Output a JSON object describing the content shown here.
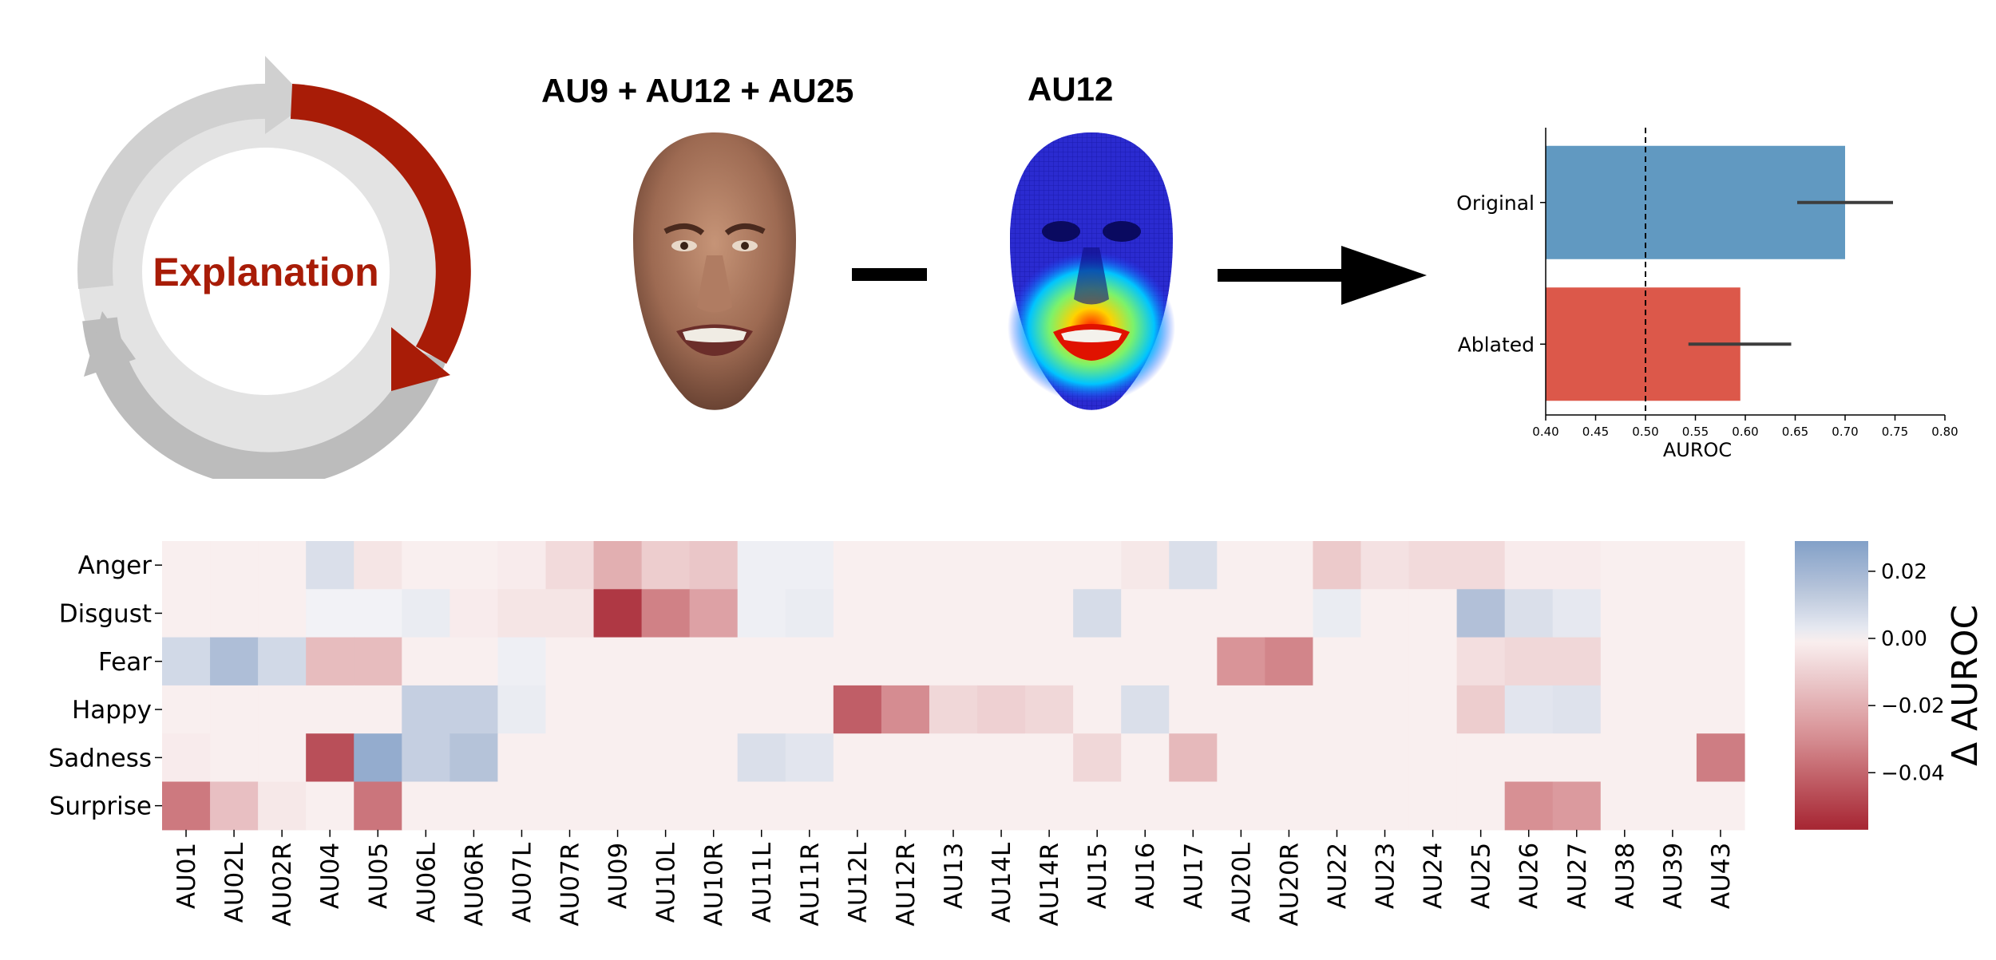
{
  "cycle": {
    "label": "Explanation",
    "accent": "#a81c07"
  },
  "faces": {
    "combined_label": "AU9 + AU12 + AU25",
    "single_label": "AU12",
    "operator": "minus"
  },
  "bar_chart": {
    "type": "bar",
    "orientation": "horizontal",
    "categories": [
      "Original",
      "Ablated"
    ],
    "values": [
      0.7,
      0.595
    ],
    "errors": [
      [
        0.652,
        0.748
      ],
      [
        0.543,
        0.646
      ]
    ],
    "colors": [
      "#6199c1",
      "#dc584a"
    ],
    "xlabel": "AUROC",
    "xlim": [
      0.4,
      0.8
    ],
    "xticks": [
      "0.40",
      "0.45",
      "0.50",
      "0.55",
      "0.60",
      "0.65",
      "0.70",
      "0.75",
      "0.80"
    ],
    "reference_line": 0.5
  },
  "chart_data": {
    "type": "heatmap",
    "rows": [
      "Anger",
      "Disgust",
      "Fear",
      "Happy",
      "Sadness",
      "Surprise"
    ],
    "columns": [
      "AU01",
      "AU02L",
      "AU02R",
      "AU04",
      "AU05",
      "AU06L",
      "AU06R",
      "AU07L",
      "AU07R",
      "AU09",
      "AU10L",
      "AU10R",
      "AU11L",
      "AU11R",
      "AU12L",
      "AU12R",
      "AU13",
      "AU14L",
      "AU14R",
      "AU15",
      "AU16",
      "AU17",
      "AU20L",
      "AU20R",
      "AU22",
      "AU23",
      "AU24",
      "AU25",
      "AU26",
      "AU27",
      "AU38",
      "AU39",
      "AU43"
    ],
    "values": [
      [
        -0.001,
        -0.001,
        -0.001,
        0.006,
        -0.004,
        -0.001,
        -0.001,
        -0.002,
        -0.007,
        -0.02,
        -0.011,
        -0.013,
        0.001,
        0.001,
        -0.001,
        -0.001,
        -0.001,
        -0.001,
        -0.001,
        -0.001,
        -0.003,
        0.006,
        -0.001,
        -0.001,
        -0.012,
        -0.005,
        -0.007,
        -0.007,
        -0.002,
        -0.002,
        -0.001,
        -0.001,
        -0.001
      ],
      [
        -0.001,
        -0.001,
        -0.001,
        0.0,
        0.0,
        0.002,
        -0.002,
        -0.004,
        -0.004,
        -0.052,
        -0.033,
        -0.024,
        0.001,
        0.002,
        -0.001,
        -0.001,
        -0.001,
        -0.001,
        -0.001,
        0.007,
        -0.001,
        -0.001,
        -0.001,
        -0.001,
        0.002,
        -0.001,
        -0.001,
        0.016,
        0.006,
        0.003,
        -0.001,
        -0.001,
        -0.001
      ],
      [
        0.008,
        0.017,
        0.008,
        -0.016,
        -0.016,
        -0.001,
        -0.001,
        0.001,
        -0.001,
        -0.001,
        -0.001,
        -0.001,
        -0.001,
        -0.001,
        -0.001,
        -0.001,
        -0.001,
        -0.001,
        -0.001,
        -0.001,
        -0.001,
        -0.001,
        -0.028,
        -0.032,
        -0.001,
        -0.001,
        -0.001,
        -0.006,
        -0.008,
        -0.008,
        -0.001,
        -0.001,
        -0.001
      ],
      [
        -0.001,
        -0.001,
        -0.001,
        -0.001,
        -0.001,
        0.011,
        0.011,
        0.002,
        -0.001,
        -0.001,
        -0.001,
        -0.001,
        -0.001,
        -0.001,
        -0.042,
        -0.03,
        -0.008,
        -0.01,
        -0.008,
        -0.001,
        0.006,
        -0.001,
        -0.001,
        -0.001,
        -0.001,
        -0.001,
        -0.001,
        -0.011,
        0.004,
        0.005,
        -0.001,
        -0.001,
        -0.001
      ],
      [
        -0.002,
        -0.001,
        -0.001,
        -0.046,
        0.024,
        0.011,
        0.015,
        -0.001,
        -0.001,
        -0.001,
        -0.001,
        -0.001,
        0.006,
        0.004,
        -0.001,
        -0.001,
        -0.001,
        -0.001,
        -0.001,
        -0.008,
        -0.001,
        -0.017,
        -0.001,
        -0.001,
        -0.001,
        -0.001,
        -0.001,
        -0.001,
        -0.001,
        -0.001,
        -0.001,
        -0.001,
        -0.034
      ],
      [
        -0.035,
        -0.015,
        -0.003,
        -0.001,
        -0.036,
        -0.001,
        -0.001,
        -0.001,
        -0.001,
        -0.001,
        -0.001,
        -0.001,
        -0.001,
        -0.001,
        -0.001,
        -0.001,
        -0.001,
        -0.001,
        -0.001,
        -0.001,
        -0.001,
        -0.001,
        -0.001,
        -0.001,
        -0.001,
        -0.001,
        -0.001,
        -0.001,
        -0.029,
        -0.026,
        -0.001,
        -0.001,
        -0.001
      ]
    ],
    "colorbar": {
      "label": "Δ AUROC",
      "vmin": -0.057,
      "vmax": 0.029,
      "ticks": [
        0.02,
        0.0,
        -0.02,
        -0.04
      ],
      "tick_labels": [
        "0.02",
        "0.00",
        "−0.02",
        "−0.04"
      ],
      "colormap": "vlag (diverging: red negative → white → blue positive)"
    }
  }
}
